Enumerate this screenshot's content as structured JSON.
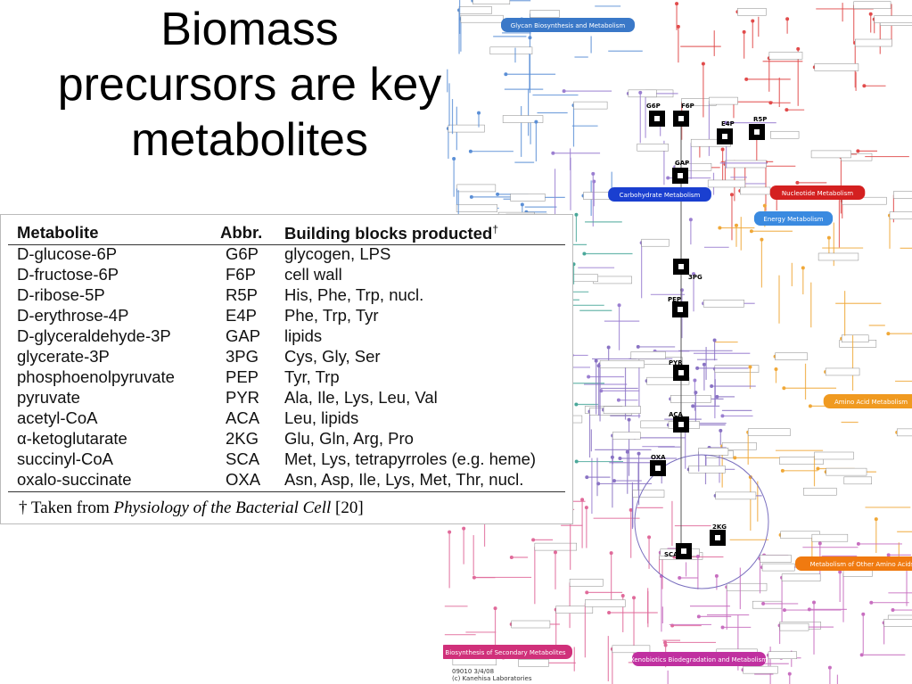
{
  "title": "Biomass precursors are key metabolites",
  "table": {
    "header": [
      "Metabolite",
      "Abbr.",
      "Building blocks producted"
    ],
    "header_mark": "†",
    "rows": [
      [
        "D-glucose-6P",
        "G6P",
        "glycogen, LPS"
      ],
      [
        "D-fructose-6P",
        "F6P",
        "cell wall"
      ],
      [
        "D-ribose-5P",
        "R5P",
        "His, Phe, Trp, nucl."
      ],
      [
        "D-erythrose-4P",
        "E4P",
        "Phe, Trp, Tyr"
      ],
      [
        "D-glyceraldehyde-3P",
        "GAP",
        "lipids"
      ],
      [
        "glycerate-3P",
        "3PG",
        "Cys, Gly, Ser"
      ],
      [
        "phosphoenolpyruvate",
        "PEP",
        "Tyr, Trp"
      ],
      [
        "pyruvate",
        "PYR",
        "Ala, Ile, Lys, Leu, Val"
      ],
      [
        "acetyl-CoA",
        "ACA",
        "Leu, lipids"
      ],
      [
        "α-ketoglutarate",
        "2KG",
        "Glu, Gln, Arg, Pro"
      ],
      [
        "succinyl-CoA",
        "SCA",
        "Met, Lys, tetrapyrroles (e.g. heme)"
      ],
      [
        "oxalo-succinate",
        "OXA",
        "Asn, Asp, Ile, Lys, Met, Thr, nucl."
      ]
    ],
    "footnote": {
      "prefix": "† Taken from",
      "book": "Physiology of the Bacterial Cell",
      "ref": "[20]"
    }
  },
  "map": {
    "nodes": [
      "G6P",
      "F6P",
      "E4P",
      "R5P",
      "GAP",
      "3PG",
      "PEP",
      "PYR",
      "ACA",
      "OXA",
      "2KG",
      "SCA"
    ],
    "categories": [
      "Glycan Biosynthesis and Metabolism",
      "Carbohydrate Metabolism",
      "Nucleotide Metabolism",
      "Energy Metabolism",
      "Amino Acid Metabolism",
      "Metabolism of Other Amino Acids",
      "Biosynthesis of Secondary Metabolites",
      "Xenobiotics Biodegradation and Metabolism"
    ],
    "credit": [
      "09010 3/4/08",
      "(c) Kanehisa Laboratories"
    ]
  }
}
